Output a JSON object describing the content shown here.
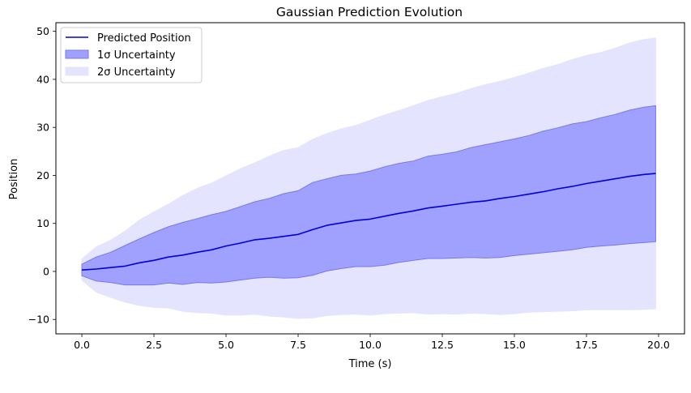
{
  "chart_data": {
    "type": "area",
    "title": "Gaussian Prediction Evolution",
    "xlabel": "Time (s)",
    "ylabel": "Position",
    "xlim": [
      -0.9,
      20.9
    ],
    "ylim": [
      -13,
      51.8
    ],
    "xticks": [
      0.0,
      2.5,
      5.0,
      7.5,
      10.0,
      12.5,
      15.0,
      17.5,
      20.0
    ],
    "xtick_labels": [
      "0.0",
      "2.5",
      "5.0",
      "7.5",
      "10.0",
      "12.5",
      "15.0",
      "17.5",
      "20.0"
    ],
    "yticks": [
      -10,
      0,
      10,
      20,
      30,
      40,
      50
    ],
    "ytick_labels": [
      "−10",
      "0",
      "10",
      "20",
      "30",
      "40",
      "50"
    ],
    "grid": false,
    "legend_position": "top-left",
    "legend": [
      "Predicted Position",
      "1σ Uncertainty",
      "2σ Uncertainty"
    ],
    "colors": {
      "line": "#0000dd",
      "band1_fill": "#a0a0ff",
      "band1_edge": "#7777ee",
      "band2_fill": "#e4e4ff"
    },
    "x": [
      0.0,
      0.5,
      1.0,
      1.5,
      2.0,
      2.5,
      3.0,
      3.5,
      4.0,
      4.5,
      5.0,
      5.5,
      6.0,
      6.5,
      7.0,
      7.5,
      8.0,
      8.5,
      9.0,
      9.5,
      10.0,
      10.5,
      11.0,
      11.5,
      12.0,
      12.5,
      13.0,
      13.5,
      14.0,
      14.5,
      15.0,
      15.5,
      16.0,
      16.5,
      17.0,
      17.5,
      18.0,
      18.5,
      19.0,
      19.5,
      19.9
    ],
    "series": [
      {
        "name": "Predicted Position",
        "values": [
          0.3,
          0.5,
          0.8,
          1.1,
          1.8,
          2.3,
          3.0,
          3.4,
          4.0,
          4.5,
          5.3,
          5.9,
          6.6,
          6.9,
          7.3,
          7.7,
          8.7,
          9.6,
          10.1,
          10.6,
          10.9,
          11.5,
          12.1,
          12.6,
          13.2,
          13.6,
          14.0,
          14.4,
          14.7,
          15.2,
          15.6,
          16.1,
          16.6,
          17.2,
          17.7,
          18.3,
          18.8,
          19.3,
          19.8,
          20.2,
          20.4
        ]
      },
      {
        "name": "1σ Uncertainty",
        "lower": [
          -0.9,
          -2.0,
          -2.3,
          -2.8,
          -2.8,
          -2.8,
          -2.4,
          -2.7,
          -2.3,
          -2.4,
          -2.2,
          -1.8,
          -1.4,
          -1.2,
          -1.4,
          -1.3,
          -0.8,
          0.1,
          0.6,
          1.0,
          1.0,
          1.3,
          1.9,
          2.3,
          2.7,
          2.7,
          2.8,
          2.9,
          2.8,
          2.9,
          3.3,
          3.6,
          3.9,
          4.2,
          4.5,
          5.0,
          5.3,
          5.5,
          5.8,
          6.0,
          6.2
        ],
        "upper": [
          1.5,
          3.0,
          4.0,
          5.4,
          6.8,
          8.1,
          9.3,
          10.2,
          11.0,
          11.8,
          12.5,
          13.5,
          14.5,
          15.2,
          16.2,
          16.8,
          18.5,
          19.3,
          20.0,
          20.3,
          20.9,
          21.8,
          22.5,
          23.0,
          24.0,
          24.4,
          24.9,
          25.8,
          26.4,
          27.0,
          27.6,
          28.3,
          29.2,
          29.9,
          30.7,
          31.2,
          32.0,
          32.7,
          33.6,
          34.2,
          34.5
        ]
      },
      {
        "name": "2σ Uncertainty",
        "lower": [
          -1.8,
          -4.3,
          -5.4,
          -6.4,
          -7.1,
          -7.5,
          -7.6,
          -8.3,
          -8.6,
          -8.7,
          -9.1,
          -9.1,
          -8.9,
          -9.3,
          -9.5,
          -9.8,
          -9.7,
          -9.2,
          -9.0,
          -8.9,
          -9.1,
          -8.8,
          -8.7,
          -8.6,
          -8.9,
          -8.8,
          -8.9,
          -8.7,
          -8.8,
          -9.0,
          -8.8,
          -8.5,
          -8.4,
          -8.3,
          -8.2,
          -8.0,
          -8.0,
          -8.0,
          -8.0,
          -7.9,
          -7.8
        ],
        "upper": [
          2.6,
          5.1,
          6.5,
          8.4,
          10.7,
          12.4,
          14.0,
          15.8,
          17.3,
          18.4,
          19.9,
          21.4,
          22.6,
          24.0,
          25.2,
          25.8,
          27.5,
          28.7,
          29.7,
          30.4,
          31.5,
          32.6,
          33.5,
          34.5,
          35.6,
          36.4,
          37.1,
          38.1,
          38.9,
          39.6,
          40.4,
          41.3,
          42.3,
          43.1,
          44.1,
          45.0,
          45.6,
          46.5,
          47.6,
          48.3,
          48.6
        ]
      }
    ]
  }
}
